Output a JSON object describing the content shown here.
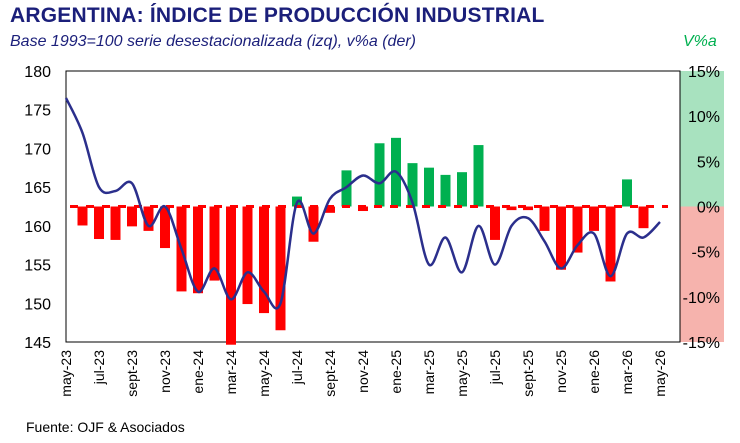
{
  "header": {
    "title": "ARGENTINA: ÍNDICE DE PRODUCCIÓN INDUSTRIAL",
    "subtitle": "Base 1993=100 serie desestacionalizada (izq), v%a (der)",
    "right_unit": "V%a"
  },
  "footer": {
    "source": "Fuente: OJF & Asociados"
  },
  "colors": {
    "title": "#1b1f7a",
    "line": "#2b2f8c",
    "bar_positive": "#00b050",
    "bar_negative": "#ff0000",
    "band_positive": "#a8e2bf",
    "band_negative": "#f6b3ad"
  },
  "chart_data": {
    "type": "bar+line",
    "title": "ARGENTINA: ÍNDICE DE PRODUCCIÓN INDUSTRIAL",
    "subtitle": "Base 1993=100 serie desestacionalizada (izq), v%a (der)",
    "x_tick_labels": [
      "may-23",
      "jul-23",
      "sept-23",
      "nov-23",
      "ene-24",
      "mar-24",
      "may-24",
      "jul-24",
      "sept-24",
      "nov-24",
      "ene-25",
      "mar-25",
      "may-25",
      "jul-25",
      "sept-25",
      "nov-25",
      "ene-26",
      "mar-26",
      "may-26"
    ],
    "categories": [
      "may-23",
      "jun-23",
      "jul-23",
      "ago-23",
      "sept-23",
      "oct-23",
      "nov-23",
      "dic-23",
      "ene-24",
      "feb-24",
      "mar-24",
      "abr-24",
      "may-24",
      "jun-24",
      "jul-24",
      "ago-24",
      "sept-24",
      "oct-24",
      "nov-24",
      "dic-24",
      "ene-25",
      "feb-25",
      "mar-25",
      "abr-25",
      "may-25",
      "jun-25",
      "jul-25",
      "ago-25",
      "sept-25",
      "oct-25",
      "nov-25",
      "dic-25",
      "ene-26",
      "feb-26",
      "mar-26",
      "abr-26",
      "may-26"
    ],
    "left_axis": {
      "ylim": [
        145,
        180
      ],
      "ticks": [
        "180",
        "175",
        "170",
        "165",
        "160",
        "155",
        "150",
        "145"
      ]
    },
    "right_axis": {
      "label": "V%a",
      "ylim": [
        -15,
        15
      ],
      "ticks": [
        "15%",
        "10%",
        "5%",
        "0%",
        "-5%",
        "-10%",
        "-15%"
      ]
    },
    "series": [
      {
        "name": "Índice (izq)",
        "type": "line",
        "axis": "left",
        "values": [
          176.5,
          172.0,
          165.0,
          164.5,
          165.5,
          160.0,
          162.5,
          157.0,
          151.5,
          154.5,
          150.5,
          154.0,
          151.5,
          150.0,
          163.0,
          159.0,
          163.5,
          165.0,
          166.5,
          165.5,
          167.0,
          163.0,
          155.0,
          158.5,
          154.0,
          160.0,
          155.0,
          160.0,
          161.0,
          158.0,
          154.5,
          157.5,
          159.0,
          153.5,
          159.0,
          158.5,
          160.5
        ]
      },
      {
        "name": "v%a (der)",
        "type": "bar",
        "axis": "right",
        "values": [
          null,
          -2.1,
          -3.6,
          -3.7,
          -2.2,
          -2.7,
          -4.6,
          -9.4,
          -9.6,
          -8.2,
          -15.3,
          -10.8,
          -11.8,
          -13.7,
          1.1,
          -3.9,
          -0.7,
          4.0,
          -0.5,
          7.0,
          7.6,
          4.8,
          4.3,
          3.5,
          3.8,
          6.8,
          -3.7,
          -0.4,
          -0.4,
          -2.7,
          -7.0,
          -5.1,
          -2.7,
          -8.3,
          3.0,
          -2.4,
          null
        ]
      }
    ],
    "grid": false,
    "zero_line": "dashed red"
  }
}
